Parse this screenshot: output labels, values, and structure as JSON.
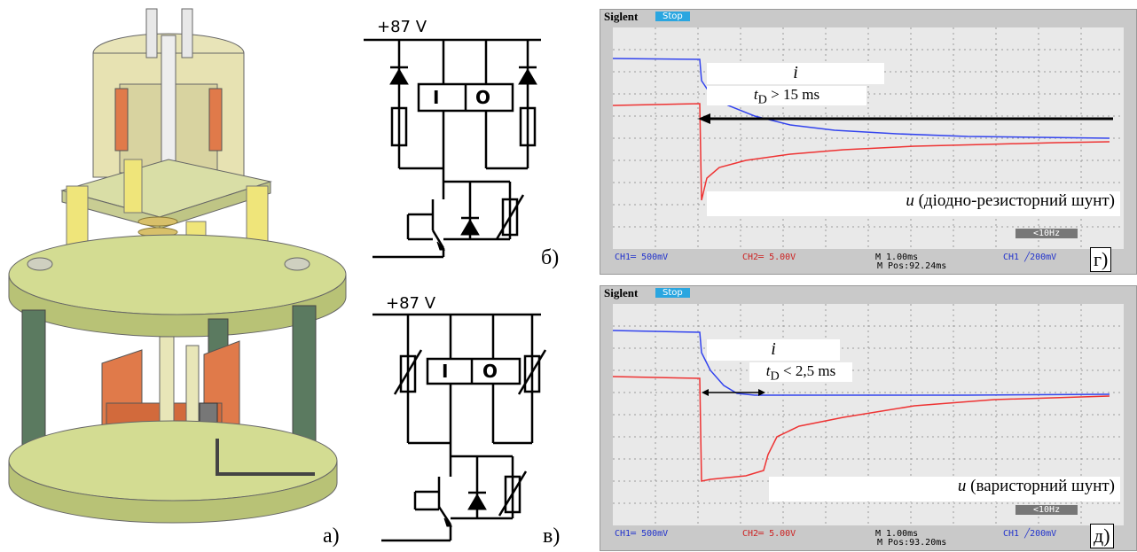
{
  "panels": {
    "a": {
      "label": "а)"
    },
    "b": {
      "label": "б)",
      "supply": "+87 V",
      "relay_left": "I",
      "relay_right": "O"
    },
    "v": {
      "label": "в)",
      "supply": "+87 V",
      "relay_left": "I",
      "relay_right": "O"
    },
    "g": {
      "label": "г)",
      "brand": "Siglent",
      "status": "Stop",
      "i_label": "i",
      "td_sub": "D",
      "td_text": " > 15 ms",
      "u_label": "u",
      "u_text": " (діодно-резисторний шунт)",
      "trig": "<10Hz",
      "ch1": "CH1═ 500mV",
      "ch2": "CH2═ 5.00V",
      "time": "M 1.00ms",
      "pos": "M Pos:92.24ms",
      "trig_ch": "CH1 ╱200mV"
    },
    "d": {
      "label": "д)",
      "brand": "Siglent",
      "status": "Stop",
      "i_label": "i",
      "td_sub": "D",
      "td_text": " < 2,5 ms",
      "u_label": "u",
      "u_text": " (варисторний шунт)",
      "trig": "<10Hz",
      "ch1": "CH1═ 500mV",
      "ch2": "CH2═ 5.00V",
      "time": "M 1.00ms",
      "pos": "M Pos:93.20ms",
      "trig_ch": "CH1 ╱200mV"
    }
  },
  "colors": {
    "current_trace": "#3344ee",
    "voltage_trace": "#ee3333",
    "plate": "#cfd98a",
    "copper": "#e07a4a"
  }
}
